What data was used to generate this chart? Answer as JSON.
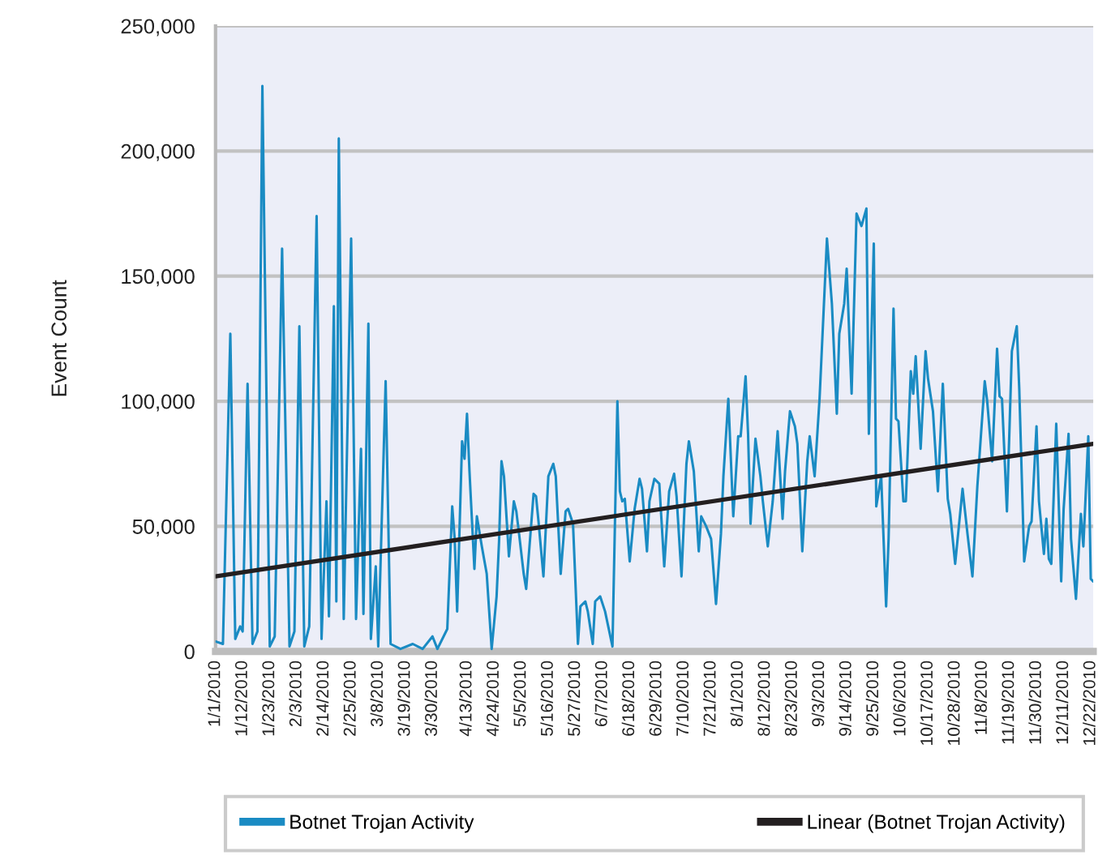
{
  "chart_data": {
    "type": "line",
    "ylabel": "Event Count",
    "x": [
      "2010-01-01",
      "2010-01-04",
      "2010-01-07",
      "2010-01-09",
      "2010-01-11",
      "2010-01-12",
      "2010-01-14",
      "2010-01-16",
      "2010-01-18",
      "2010-01-20",
      "2010-01-23",
      "2010-01-25",
      "2010-01-28",
      "2010-01-31",
      "2010-02-02",
      "2010-02-04",
      "2010-02-06",
      "2010-02-08",
      "2010-02-11",
      "2010-02-13",
      "2010-02-15",
      "2010-02-16",
      "2010-02-18",
      "2010-02-19",
      "2010-02-20",
      "2010-02-22",
      "2010-02-25",
      "2010-02-27",
      "2010-03-01",
      "2010-03-02",
      "2010-03-04",
      "2010-03-05",
      "2010-03-07",
      "2010-03-08",
      "2010-03-11",
      "2010-03-13",
      "2010-03-17",
      "2010-03-22",
      "2010-03-26",
      "2010-03-30",
      "2010-04-01",
      "2010-04-05",
      "2010-04-07",
      "2010-04-08",
      "2010-04-09",
      "2010-04-11",
      "2010-04-12",
      "2010-04-13",
      "2010-04-14",
      "2010-04-16",
      "2010-04-17",
      "2010-04-19",
      "2010-04-21",
      "2010-04-23",
      "2010-04-25",
      "2010-04-26",
      "2010-04-27",
      "2010-04-28",
      "2010-04-30",
      "2010-05-02",
      "2010-05-03",
      "2010-05-04",
      "2010-05-06",
      "2010-05-07",
      "2010-05-10",
      "2010-05-11",
      "2010-05-12",
      "2010-05-14",
      "2010-05-16",
      "2010-05-18",
      "2010-05-19",
      "2010-05-21",
      "2010-05-23",
      "2010-05-24",
      "2010-05-26",
      "2010-05-28",
      "2010-05-29",
      "2010-05-31",
      "2010-06-01",
      "2010-06-03",
      "2010-06-04",
      "2010-06-06",
      "2010-06-08",
      "2010-06-11",
      "2010-06-13",
      "2010-06-14",
      "2010-06-15",
      "2010-06-16",
      "2010-06-18",
      "2010-06-20",
      "2010-06-22",
      "2010-06-23",
      "2010-06-25",
      "2010-06-26",
      "2010-06-28",
      "2010-06-30",
      "2010-07-02",
      "2010-07-04",
      "2010-07-06",
      "2010-07-07",
      "2010-07-09",
      "2010-07-11",
      "2010-07-12",
      "2010-07-14",
      "2010-07-16",
      "2010-07-17",
      "2010-07-19",
      "2010-07-21",
      "2010-07-23",
      "2010-07-25",
      "2010-07-26",
      "2010-07-28",
      "2010-07-30",
      "2010-08-01",
      "2010-08-02",
      "2010-08-04",
      "2010-08-05",
      "2010-08-06",
      "2010-08-08",
      "2010-08-10",
      "2010-08-11",
      "2010-08-13",
      "2010-08-15",
      "2010-08-17",
      "2010-08-19",
      "2010-08-20",
      "2010-08-22",
      "2010-08-24",
      "2010-08-25",
      "2010-08-27",
      "2010-08-29",
      "2010-08-30",
      "2010-09-01",
      "2010-09-03",
      "2010-09-06",
      "2010-09-08",
      "2010-09-10",
      "2010-09-11",
      "2010-09-13",
      "2010-09-14",
      "2010-09-16",
      "2010-09-18",
      "2010-09-20",
      "2010-09-22",
      "2010-09-23",
      "2010-09-25",
      "2010-09-26",
      "2010-09-28",
      "2010-09-30",
      "2010-10-01",
      "2010-10-03",
      "2010-10-04",
      "2010-10-05",
      "2010-10-07",
      "2010-10-08",
      "2010-10-10",
      "2010-10-11",
      "2010-10-12",
      "2010-10-14",
      "2010-10-16",
      "2010-10-17",
      "2010-10-19",
      "2010-10-21",
      "2010-10-23",
      "2010-10-25",
      "2010-10-26",
      "2010-10-28",
      "2010-10-31",
      "2010-11-02",
      "2010-11-04",
      "2010-11-06",
      "2010-11-09",
      "2010-11-10",
      "2010-11-12",
      "2010-11-14",
      "2010-11-15",
      "2010-11-16",
      "2010-11-18",
      "2010-11-20",
      "2010-11-22",
      "2010-11-23",
      "2010-11-25",
      "2010-11-27",
      "2010-11-28",
      "2010-11-30",
      "2010-12-01",
      "2010-12-03",
      "2010-12-04",
      "2010-12-05",
      "2010-12-06",
      "2010-12-08",
      "2010-12-10",
      "2010-12-11",
      "2010-12-13",
      "2010-12-14",
      "2010-12-16",
      "2010-12-18",
      "2010-12-19",
      "2010-12-21",
      "2010-12-22",
      "2010-12-23"
    ],
    "series": [
      {
        "name": "Botnet Trojan Activity",
        "color": "#1a8bc3",
        "values": [
          4000,
          3000,
          127000,
          5000,
          10000,
          8000,
          107000,
          3000,
          8000,
          226000,
          2000,
          6000,
          161000,
          2000,
          8000,
          130000,
          2000,
          10000,
          174000,
          5000,
          60000,
          14000,
          138000,
          20000,
          205000,
          13000,
          165000,
          13000,
          81000,
          15000,
          131000,
          5000,
          34000,
          2000,
          108000,
          3000,
          1000,
          3000,
          1000,
          6000,
          1000,
          9000,
          58000,
          45000,
          16000,
          84000,
          77000,
          95000,
          72000,
          33000,
          54000,
          42000,
          31000,
          1000,
          22000,
          44000,
          76000,
          70000,
          38000,
          60000,
          56000,
          48000,
          31000,
          25000,
          63000,
          62000,
          52000,
          30000,
          70000,
          75000,
          70000,
          31000,
          56000,
          57000,
          51000,
          3000,
          18000,
          20000,
          16000,
          3000,
          20000,
          22000,
          16000,
          2000,
          100000,
          64000,
          60000,
          61000,
          36000,
          57000,
          69000,
          65000,
          40000,
          60000,
          69000,
          67000,
          34000,
          64000,
          71000,
          62000,
          30000,
          75000,
          84000,
          72000,
          40000,
          54000,
          50000,
          45000,
          19000,
          47000,
          70000,
          101000,
          54000,
          86000,
          86000,
          110000,
          87000,
          51000,
          85000,
          70000,
          60000,
          42000,
          60000,
          88000,
          53000,
          72000,
          96000,
          90000,
          83000,
          40000,
          76000,
          86000,
          70000,
          101000,
          165000,
          139000,
          95000,
          127000,
          139000,
          153000,
          103000,
          175000,
          170000,
          177000,
          87000,
          163000,
          58000,
          70000,
          18000,
          45000,
          137000,
          93000,
          92000,
          60000,
          60000,
          112000,
          103000,
          118000,
          81000,
          120000,
          109000,
          96000,
          64000,
          107000,
          61000,
          55000,
          35000,
          65000,
          47000,
          30000,
          66000,
          108000,
          100000,
          76000,
          121000,
          102000,
          101000,
          56000,
          120000,
          130000,
          105000,
          36000,
          50000,
          52000,
          90000,
          60000,
          39000,
          53000,
          37000,
          35000,
          91000,
          28000,
          57000,
          87000,
          45000,
          21000,
          55000,
          42000,
          86000,
          29000,
          28000
        ]
      },
      {
        "name": "Linear (Botnet Trojan Activity)",
        "type": "line",
        "color": "#231f20",
        "x": [
          "2010-01-01",
          "2010-12-23"
        ],
        "values": [
          30000,
          83000
        ]
      }
    ],
    "xlim": [
      "2010-01-01",
      "2010-12-23"
    ],
    "xticks": [
      {
        "value": "2010-01-01",
        "label": "1/1/2010"
      },
      {
        "value": "2010-01-12",
        "label": "1/12/2010"
      },
      {
        "value": "2010-01-23",
        "label": "1/23/2010"
      },
      {
        "value": "2010-02-03",
        "label": "2/3/2010"
      },
      {
        "value": "2010-02-14",
        "label": "2/14/2010"
      },
      {
        "value": "2010-02-25",
        "label": "2/25/2010"
      },
      {
        "value": "2010-03-08",
        "label": "3/8/2010"
      },
      {
        "value": "2010-03-19",
        "label": "3/19/2010"
      },
      {
        "value": "2010-03-30",
        "label": "3/30/2010"
      },
      {
        "value": "2010-04-13",
        "label": "4/13/2010"
      },
      {
        "value": "2010-04-24",
        "label": "4/24/2010"
      },
      {
        "value": "2010-05-05",
        "label": "5/5/2010"
      },
      {
        "value": "2010-05-16",
        "label": "5/16/2010"
      },
      {
        "value": "2010-05-27",
        "label": "5/27/2010"
      },
      {
        "value": "2010-06-07",
        "label": "6/7/2010"
      },
      {
        "value": "2010-06-18",
        "label": "6/18/2010"
      },
      {
        "value": "2010-06-29",
        "label": "6/29/2010"
      },
      {
        "value": "2010-07-10",
        "label": "7/10/2010"
      },
      {
        "value": "2010-07-21",
        "label": "7/21/2010"
      },
      {
        "value": "2010-08-01",
        "label": "8/1/2010"
      },
      {
        "value": "2010-08-12",
        "label": "8/12/2010"
      },
      {
        "value": "2010-08-23",
        "label": "8/23/2010"
      },
      {
        "value": "2010-09-03",
        "label": "9/3/2010"
      },
      {
        "value": "2010-09-14",
        "label": "9/14/2010"
      },
      {
        "value": "2010-09-25",
        "label": "9/25/2010"
      },
      {
        "value": "2010-10-06",
        "label": "10/6/2010"
      },
      {
        "value": "2010-10-17",
        "label": "10/17/2010"
      },
      {
        "value": "2010-10-28",
        "label": "10/28/2010"
      },
      {
        "value": "2010-11-08",
        "label": "11/8/2010"
      },
      {
        "value": "2010-11-19",
        "label": "11/19/2010"
      },
      {
        "value": "2010-11-30",
        "label": "11/30/2010"
      },
      {
        "value": "2010-12-11",
        "label": "12/11/2010"
      },
      {
        "value": "2010-12-22",
        "label": "12/22/2010"
      }
    ],
    "ylim": [
      0,
      250000
    ],
    "yticks": [
      0,
      {
        "value": 50000,
        "label": "50,000"
      },
      {
        "value": 100000,
        "label": "100,000"
      },
      {
        "value": 150000,
        "label": "150,000"
      },
      {
        "value": 200000,
        "label": "200,000"
      },
      {
        "value": 250000,
        "label": "250,000"
      }
    ],
    "grid": "y",
    "legend": "bottom"
  }
}
